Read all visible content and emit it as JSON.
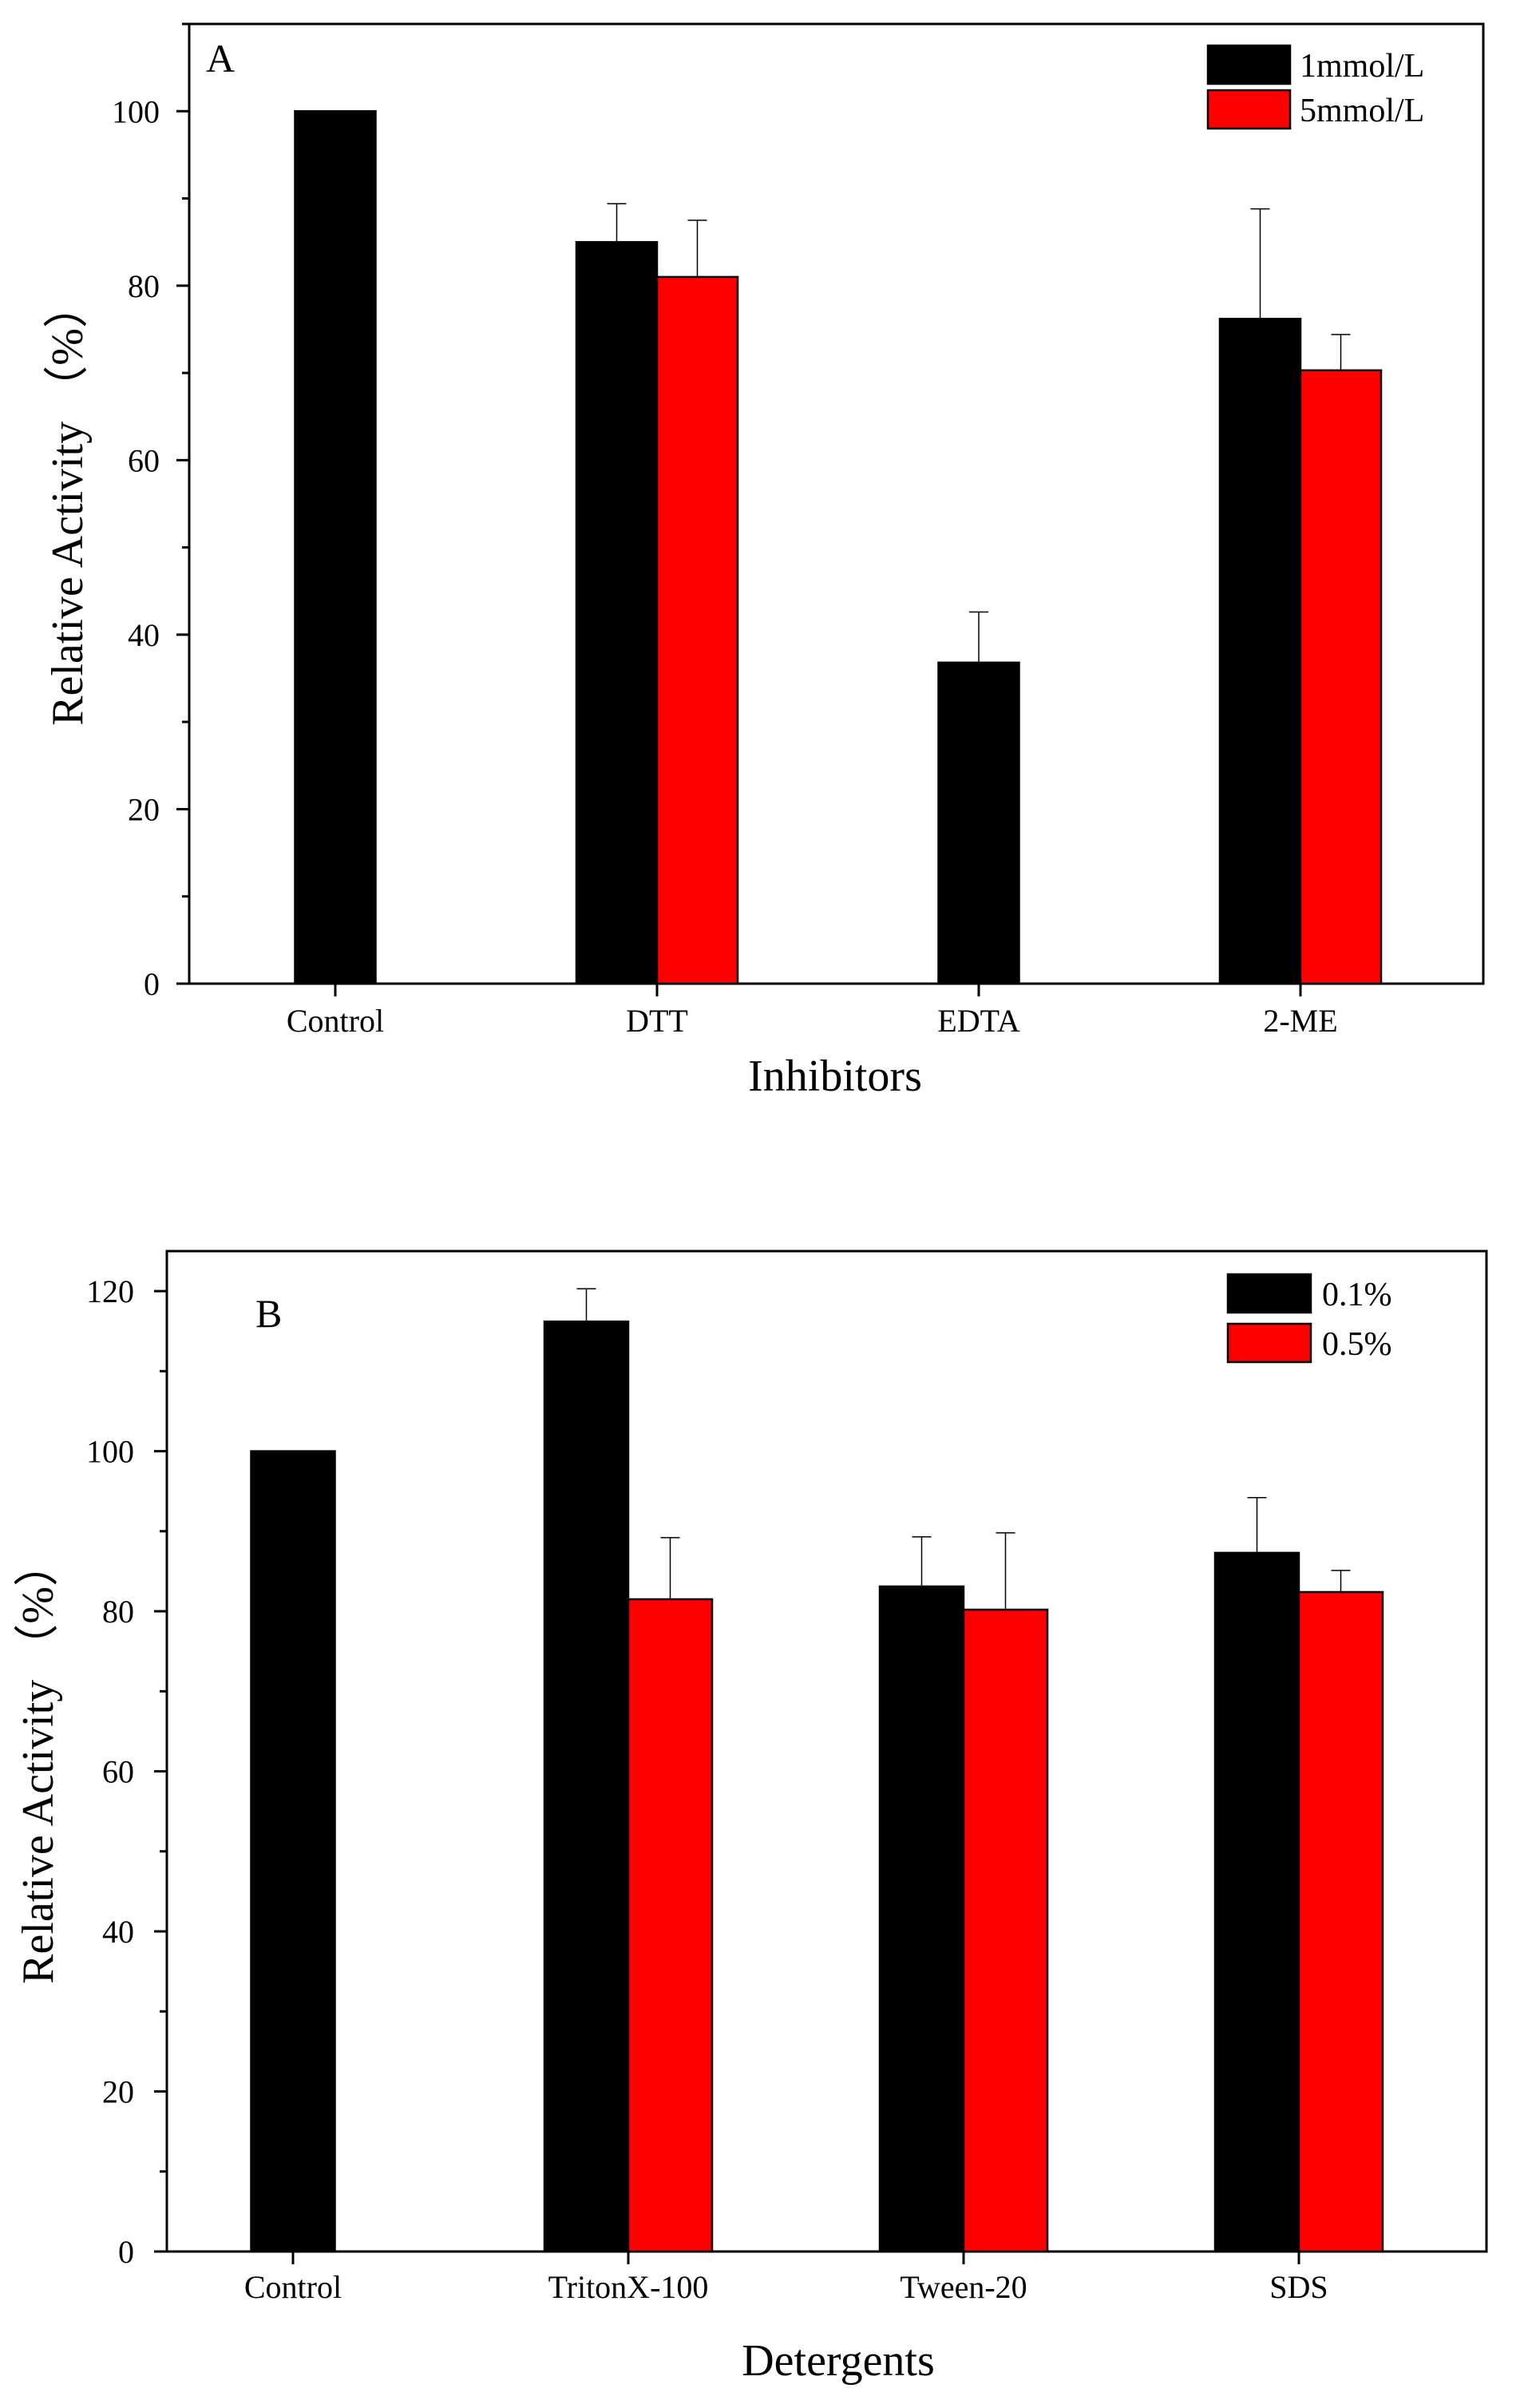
{
  "chart_data": [
    {
      "panel": "A",
      "type": "bar",
      "xlabel": "Inhibitors",
      "ylabel": "Relative Activity （%）",
      "ylim": [
        0,
        110
      ],
      "yticks": [
        0,
        20,
        40,
        60,
        80,
        100
      ],
      "categories": [
        "Control",
        "DTT",
        "EDTA",
        "2-ME"
      ],
      "series": [
        {
          "name": "1mmol/L",
          "color": "#000000",
          "values": [
            100,
            85,
            36.8,
            76.2
          ],
          "errors": [
            0,
            4.4,
            5.8,
            12.6
          ]
        },
        {
          "name": "5mmol/L",
          "color": "#ff0000",
          "values": [
            null,
            81,
            null,
            70.3
          ],
          "errors": [
            null,
            6.5,
            null,
            4.1
          ]
        }
      ],
      "legend_position": "top-right"
    },
    {
      "panel": "B",
      "type": "bar",
      "xlabel": "Detergents",
      "ylabel": "Relative Activity （%）",
      "ylim": [
        0,
        125
      ],
      "yticks": [
        0,
        20,
        40,
        60,
        80,
        100,
        120
      ],
      "categories": [
        "Control",
        "TritonX-100",
        "Tween-20",
        "SDS"
      ],
      "series": [
        {
          "name": "0.1%",
          "color": "#000000",
          "values": [
            100,
            116.2,
            83.1,
            87.3
          ],
          "errors": [
            0,
            4.1,
            6.2,
            6.9
          ]
        },
        {
          "name": "0.5%",
          "color": "#ff0000",
          "values": [
            null,
            81.5,
            80.2,
            82.4
          ],
          "errors": [
            null,
            7.7,
            9.6,
            2.7
          ]
        }
      ],
      "legend_position": "top-right"
    }
  ]
}
